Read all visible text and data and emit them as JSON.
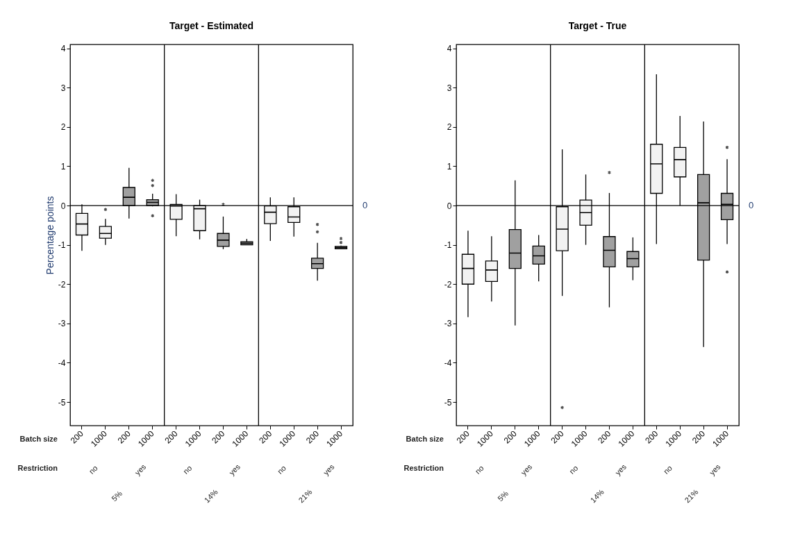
{
  "chart_data": [
    {
      "type": "box",
      "title": "Target - Estimated",
      "ylabel": "Percentage points",
      "categories": [
        "200",
        "1000",
        "200",
        "1000",
        "200",
        "1000",
        "200",
        "1000",
        "200",
        "1000",
        "200",
        "1000"
      ],
      "colors": [
        "#f2f2f2",
        "#f2f2f2",
        "#a0a0a0",
        "#a0a0a0",
        "#f2f2f2",
        "#f2f2f2",
        "#a0a0a0",
        "#a0a0a0",
        "#f2f2f2",
        "#f2f2f2",
        "#a0a0a0",
        "#a0a0a0"
      ],
      "boxes": [
        {
          "low": -1.15,
          "q1": -0.75,
          "median": -0.47,
          "q3": -0.2,
          "high": 0.03
        },
        {
          "low": -1.0,
          "q1": -0.83,
          "median": -0.71,
          "q3": -0.53,
          "high": -0.34,
          "outliers": [
            -0.1
          ]
        },
        {
          "low": -0.33,
          "q1": 0,
          "median": 0.21,
          "q3": 0.46,
          "high": 0.96
        },
        {
          "low": -0.02,
          "q1": 0,
          "median": 0.08,
          "q3": 0.15,
          "high": 0.3,
          "outliers": [
            0.64,
            0.51,
            -0.26
          ]
        },
        {
          "low": -0.78,
          "q1": -0.35,
          "median": -0.01,
          "q3": 0.03,
          "high": 0.29
        },
        {
          "low": -0.86,
          "q1": -0.64,
          "median": -0.08,
          "q3": 0,
          "high": 0.15
        },
        {
          "low": -1.11,
          "q1": -1.04,
          "median": -0.88,
          "q3": -0.71,
          "high": -0.28,
          "outliers": [
            0.03
          ]
        },
        {
          "low": -1.0,
          "q1": -1.0,
          "median": -0.96,
          "q3": -0.92,
          "high": -0.85
        },
        {
          "low": -0.9,
          "q1": -0.46,
          "median": -0.17,
          "q3": -0.01,
          "high": 0.21
        },
        {
          "low": -0.79,
          "q1": -0.43,
          "median": -0.29,
          "q3": -0.03,
          "high": 0.21
        },
        {
          "low": -1.91,
          "q1": -1.6,
          "median": -1.48,
          "q3": -1.34,
          "high": -0.95,
          "outliers": [
            -0.48,
            -0.67
          ]
        },
        {
          "low": -1.1,
          "q1": -1.1,
          "median": -1.07,
          "q3": -1.04,
          "high": -1.02,
          "outliers": [
            -0.84,
            -0.94
          ]
        }
      ],
      "ylim": [
        -5.6,
        4.1
      ],
      "yticks": [
        -5,
        -4,
        -3,
        -2,
        -1,
        0,
        1,
        2,
        3,
        4
      ],
      "ref_lines": [
        {
          "axis": "y",
          "value": 0,
          "label": "0"
        }
      ],
      "annotations": [
        "Batch size",
        "Restriction",
        "no",
        "yes",
        "no",
        "yes",
        "no",
        "yes",
        "5%",
        "14%",
        "21%"
      ]
    },
    {
      "type": "box",
      "title": "Target - True",
      "categories": [
        "200",
        "1000",
        "200",
        "1000",
        "200",
        "1000",
        "200",
        "1000",
        "200",
        "1000",
        "200",
        "1000"
      ],
      "colors": [
        "#f2f2f2",
        "#f2f2f2",
        "#a0a0a0",
        "#a0a0a0",
        "#f2f2f2",
        "#f2f2f2",
        "#a0a0a0",
        "#a0a0a0",
        "#f2f2f2",
        "#f2f2f2",
        "#a0a0a0",
        "#a0a0a0"
      ],
      "boxes": [
        {
          "low": -2.84,
          "q1": -2.0,
          "median": -1.6,
          "q3": -1.24,
          "high": -0.64
        },
        {
          "low": -2.44,
          "q1": -1.93,
          "median": -1.64,
          "q3": -1.41,
          "high": -0.78
        },
        {
          "low": -3.05,
          "q1": -1.6,
          "median": -1.21,
          "q3": -0.61,
          "high": 0.64
        },
        {
          "low": -1.93,
          "q1": -1.49,
          "median": -1.28,
          "q3": -1.03,
          "high": -0.75
        },
        {
          "low": -2.3,
          "q1": -1.15,
          "median": -0.6,
          "q3": -0.03,
          "high": 1.43,
          "outliers": [
            -5.14
          ]
        },
        {
          "low": -1.0,
          "q1": -0.5,
          "median": -0.18,
          "q3": 0.14,
          "high": 0.79
        },
        {
          "low": -2.59,
          "q1": -1.56,
          "median": -1.14,
          "q3": -0.79,
          "high": 0.32,
          "outliers": [
            0.84
          ]
        },
        {
          "low": -1.9,
          "q1": -1.56,
          "median": -1.35,
          "q3": -1.17,
          "high": -0.81
        },
        {
          "low": -0.98,
          "q1": 0.31,
          "median": 1.06,
          "q3": 1.56,
          "high": 3.34
        },
        {
          "low": 0,
          "q1": 0.73,
          "median": 1.17,
          "q3": 1.48,
          "high": 2.28
        },
        {
          "low": -3.6,
          "q1": -1.39,
          "median": 0.07,
          "q3": 0.79,
          "high": 2.14
        },
        {
          "low": -0.98,
          "q1": -0.36,
          "median": 0.03,
          "q3": 0.31,
          "high": 1.18,
          "outliers": [
            1.48,
            -1.69
          ]
        }
      ],
      "ylim": [
        -5.6,
        4.1
      ],
      "yticks": [
        -5,
        -4,
        -3,
        -2,
        -1,
        0,
        1,
        2,
        3,
        4
      ],
      "ref_lines": [
        {
          "axis": "y",
          "value": 0,
          "label": "0"
        }
      ],
      "annotations": [
        "Batch size",
        "Restriction",
        "no",
        "yes",
        "no",
        "yes",
        "no",
        "yes",
        "5%",
        "14%",
        "21%"
      ]
    }
  ]
}
